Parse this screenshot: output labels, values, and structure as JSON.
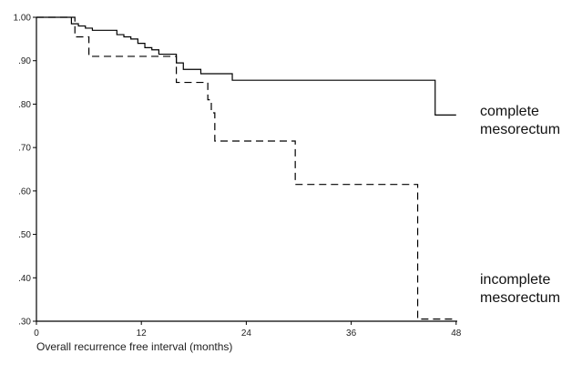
{
  "chart_data": {
    "type": "line",
    "step": true,
    "title": "",
    "xlabel": "Overall recurrence free interval (months)",
    "ylabel": "",
    "xlim": [
      0,
      50
    ],
    "ylim": [
      0.3,
      1.0
    ],
    "x_ticks": [
      0,
      12,
      24,
      36,
      48
    ],
    "x_tick_labels": [
      "0",
      "12",
      "24",
      "36",
      "48"
    ],
    "y_ticks": [
      1.0,
      0.9,
      0.8,
      0.7,
      0.6,
      0.5,
      0.4,
      0.3
    ],
    "y_tick_labels": [
      "1.00",
      ".90",
      ".80",
      ".70",
      ".60",
      ".50",
      ".40",
      ".30"
    ],
    "grid": false,
    "legend_position": "right (labels placed at line ends)",
    "series": [
      {
        "name": "complete mesorectum",
        "label_lines": [
          "complete",
          "mesorectum"
        ],
        "style": "solid",
        "color": "#000000",
        "x": [
          0,
          4.0,
          4.8,
          5.6,
          6.4,
          9.2,
          10.0,
          10.8,
          11.6,
          12.4,
          13.2,
          14.0,
          16.0,
          16.8,
          18.8,
          22.4,
          45.6,
          48.0
        ],
        "y": [
          1.0,
          0.985,
          0.98,
          0.975,
          0.97,
          0.96,
          0.955,
          0.95,
          0.94,
          0.93,
          0.925,
          0.915,
          0.895,
          0.88,
          0.87,
          0.855,
          0.775,
          0.775
        ]
      },
      {
        "name": "incomplete mesorectum",
        "label_lines": [
          "incomplete",
          "mesorectum"
        ],
        "style": "dashed",
        "color": "#000000",
        "x": [
          0,
          4.4,
          6.0,
          16.0,
          19.6,
          20.0,
          20.4,
          29.6,
          43.6,
          48.0
        ],
        "y": [
          1.0,
          0.955,
          0.91,
          0.85,
          0.81,
          0.78,
          0.715,
          0.615,
          0.305,
          0.305
        ]
      }
    ]
  }
}
